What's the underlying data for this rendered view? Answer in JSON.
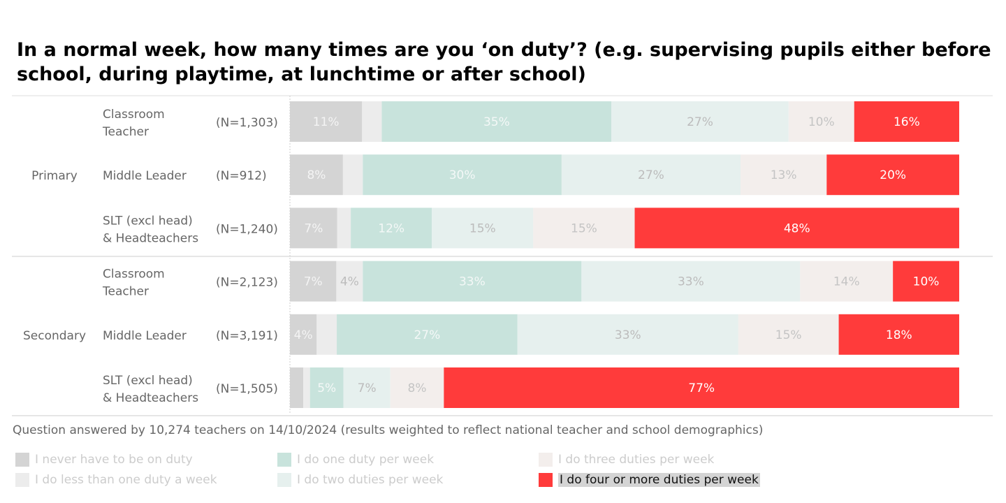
{
  "chart_data": {
    "type": "bar",
    "orientation": "horizontal-stacked-100",
    "title": "In a normal week, how many times are you ‘on duty’? (e.g. supervising pupils either before school, during playtime, at lunchtime or after school)",
    "footnote": "Question answered by 10,274 teachers on 14/10/2024 (results weighted to reflect national teacher and school demographics)",
    "series": [
      {
        "name": "I never have to be on duty",
        "color": "#d4d4d4",
        "label_color": "#f4f4f4"
      },
      {
        "name": "I do less than one duty a week",
        "color": "#ececec",
        "label_color": "#bcbcbc"
      },
      {
        "name": "I do one duty per week",
        "color": "#c8e3dc",
        "label_color": "#f4f8f7"
      },
      {
        "name": "I do two duties per week",
        "color": "#e6f0ee",
        "label_color": "#bcbcbc"
      },
      {
        "name": "I do three duties per week",
        "color": "#f3eeec",
        "label_color": "#c4c4c4"
      },
      {
        "name": "I do four or more duties per week",
        "color": "#ff3b3b",
        "label_color": "#ffffff"
      }
    ],
    "groups": [
      {
        "name": "Primary",
        "rows": [
          {
            "role": "Classroom Teacher",
            "lines": [
              "Classroom",
              "Teacher"
            ],
            "n": "(N=1,303)",
            "values": [
              11,
              3,
              35,
              27,
              10,
              16
            ],
            "labels": [
              "11%",
              "",
              "35%",
              "27%",
              "10%",
              "16%"
            ]
          },
          {
            "role": "Middle Leader",
            "lines": [
              "Middle Leader"
            ],
            "n": "(N=912)",
            "values": [
              8,
              3,
              30,
              27,
              13,
              20
            ],
            "labels": [
              "8%",
              "",
              "30%",
              "27%",
              "13%",
              "20%"
            ]
          },
          {
            "role": "SLT (excl head) & Headteachers",
            "lines": [
              "SLT (excl head)",
              "& Headteachers"
            ],
            "n": "(N=1,240)",
            "values": [
              7,
              2,
              12,
              15,
              15,
              48
            ],
            "labels": [
              "7%",
              "",
              "12%",
              "15%",
              "15%",
              "48%"
            ]
          }
        ]
      },
      {
        "name": "Secondary",
        "rows": [
          {
            "role": "Classroom Teacher",
            "lines": [
              "Classroom",
              "Teacher"
            ],
            "n": "(N=2,123)",
            "values": [
              7,
              4,
              33,
              33,
              14,
              10
            ],
            "labels": [
              "7%",
              "4%",
              "33%",
              "33%",
              "14%",
              "10%"
            ]
          },
          {
            "role": "Middle Leader",
            "lines": [
              "Middle Leader"
            ],
            "n": "(N=3,191)",
            "values": [
              4,
              3,
              27,
              33,
              15,
              18
            ],
            "labels": [
              "4%",
              "",
              "27%",
              "33%",
              "15%",
              "18%"
            ]
          },
          {
            "role": "SLT (excl head) & Headteachers",
            "lines": [
              "SLT (excl head)",
              "& Headteachers"
            ],
            "n": "(N=1,505)",
            "values": [
              2,
              1,
              5,
              7,
              8,
              77
            ],
            "labels": [
              "",
              "",
              "5%",
              "7%",
              "8%",
              "77%"
            ]
          }
        ]
      }
    ],
    "legend_highlighted": "I do four or more duties per week"
  }
}
